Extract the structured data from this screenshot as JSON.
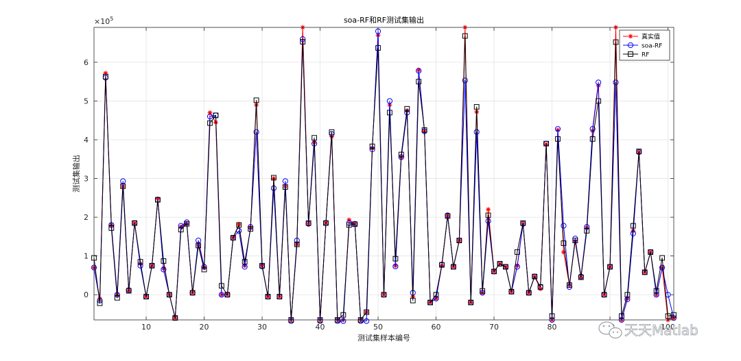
{
  "chart_data": {
    "type": "line",
    "title": "soa-RF和RF测试集输出",
    "xlabel": "测试集样本编号",
    "ylabel": "测试集输出",
    "exponent_label": "×10",
    "exponent_power": "5",
    "y_scale": 100000,
    "xlim": [
      1,
      101
    ],
    "ylim": [
      -65000,
      690000
    ],
    "xticks": [
      10,
      20,
      30,
      40,
      50,
      60,
      70,
      80,
      90,
      100
    ],
    "yticks": [
      0,
      100000,
      200000,
      300000,
      400000,
      500000,
      600000
    ],
    "ytick_labels": [
      "0",
      "1",
      "2",
      "3",
      "4",
      "5",
      "6"
    ],
    "grid": true,
    "legend_position": "top-right",
    "x": [
      1,
      2,
      3,
      4,
      5,
      6,
      7,
      8,
      9,
      10,
      11,
      12,
      13,
      14,
      15,
      16,
      17,
      18,
      19,
      20,
      21,
      22,
      23,
      24,
      25,
      26,
      27,
      28,
      29,
      30,
      31,
      32,
      33,
      34,
      35,
      36,
      37,
      38,
      39,
      40,
      41,
      42,
      43,
      44,
      45,
      46,
      47,
      48,
      49,
      50,
      51,
      52,
      53,
      54,
      55,
      56,
      57,
      58,
      59,
      60,
      61,
      62,
      63,
      64,
      65,
      66,
      67,
      68,
      69,
      70,
      71,
      72,
      73,
      74,
      75,
      76,
      77,
      78,
      79,
      80,
      81,
      82,
      83,
      84,
      85,
      86,
      87,
      88,
      89,
      90,
      91,
      92,
      93,
      94,
      95,
      96,
      97,
      98,
      99,
      100,
      101
    ],
    "series": [
      {
        "name": "真实值",
        "color": "#ff0000",
        "marker": "star",
        "values": [
          70000,
          -10000,
          572000,
          180000,
          0,
          280000,
          10000,
          185000,
          80000,
          -5000,
          75000,
          248000,
          68000,
          0,
          -60000,
          175000,
          183000,
          5000,
          130000,
          70000,
          470000,
          445000,
          0,
          0,
          148000,
          182000,
          75000,
          173000,
          490000,
          75000,
          -5000,
          300000,
          -5000,
          280000,
          -65000,
          130000,
          690000,
          183000,
          393000,
          -65000,
          185000,
          408000,
          -65000,
          -65000,
          193000,
          183000,
          -65000,
          -45000,
          378000,
          670000,
          0,
          490000,
          75000,
          355000,
          475000,
          -5000,
          580000,
          422000,
          -20000,
          -10000,
          75000,
          205000,
          72000,
          140000,
          690000,
          -20000,
          472000,
          5000,
          220000,
          60000,
          80000,
          72000,
          8000,
          75000,
          183000,
          5000,
          47000,
          15000,
          388000,
          -65000,
          425000,
          110000,
          25000,
          138000,
          45000,
          173000,
          423000,
          540000,
          0,
          72000,
          690000,
          -65000,
          -10000,
          165000,
          368000,
          58000,
          110000,
          0,
          70000,
          -65000,
          -60000
        ]
      },
      {
        "name": "soa-RF",
        "color": "#0000ff",
        "marker": "circle",
        "values": [
          70000,
          -15000,
          560000,
          180000,
          0,
          293000,
          12000,
          185000,
          75000,
          -5000,
          75000,
          245000,
          65000,
          0,
          -60000,
          178000,
          187000,
          5000,
          140000,
          72000,
          460000,
          463000,
          0,
          0,
          147000,
          165000,
          72000,
          175000,
          420000,
          73000,
          -5000,
          275000,
          -5000,
          293000,
          -68000,
          140000,
          660000,
          183000,
          390000,
          -68000,
          185000,
          415000,
          -68000,
          -68000,
          185000,
          183000,
          -68000,
          -68000,
          375000,
          680000,
          0,
          500000,
          73000,
          355000,
          470000,
          5000,
          578000,
          422000,
          -20000,
          -10000,
          78000,
          205000,
          72000,
          140000,
          553000,
          -20000,
          420000,
          5000,
          190000,
          60000,
          80000,
          72000,
          8000,
          72000,
          183000,
          5000,
          47000,
          20000,
          390000,
          -65000,
          428000,
          178000,
          20000,
          145000,
          47000,
          175000,
          428000,
          548000,
          0,
          72000,
          548000,
          -65000,
          -12000,
          158000,
          368000,
          58000,
          110000,
          0,
          70000,
          0,
          -60000
        ]
      },
      {
        "name": "RF",
        "color": "#000000",
        "marker": "square",
        "values": [
          95000,
          -22000,
          563000,
          172000,
          -8000,
          280000,
          10000,
          185000,
          85000,
          -5000,
          75000,
          245000,
          87000,
          0,
          -60000,
          168000,
          183000,
          5000,
          127000,
          65000,
          443000,
          463000,
          23000,
          0,
          147000,
          180000,
          85000,
          170000,
          502000,
          75000,
          -5000,
          302000,
          -5000,
          278000,
          -65000,
          130000,
          653000,
          185000,
          405000,
          -65000,
          185000,
          420000,
          -65000,
          -52000,
          180000,
          182000,
          -65000,
          -45000,
          383000,
          637000,
          0,
          470000,
          93000,
          362000,
          480000,
          -15000,
          550000,
          425000,
          -20000,
          0,
          77000,
          203000,
          72000,
          140000,
          668000,
          -20000,
          485000,
          10000,
          205000,
          60000,
          80000,
          72000,
          8000,
          110000,
          185000,
          5000,
          47000,
          20000,
          390000,
          -55000,
          402000,
          133000,
          25000,
          140000,
          45000,
          165000,
          402000,
          500000,
          0,
          72000,
          652000,
          -55000,
          0,
          178000,
          370000,
          58000,
          110000,
          10000,
          95000,
          -55000,
          -52000
        ]
      }
    ]
  },
  "watermark": {
    "text": "天天Matlab",
    "icon": "wechat-icon"
  }
}
